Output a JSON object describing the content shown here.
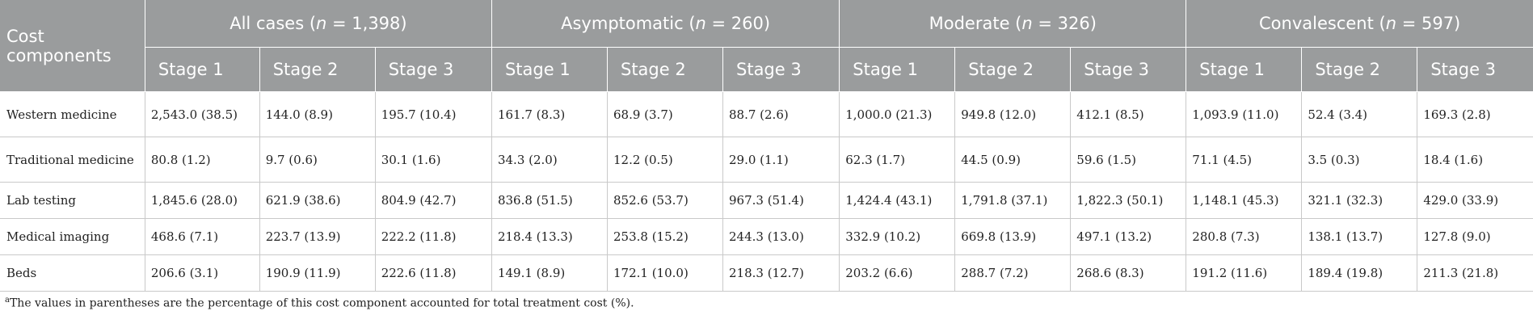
{
  "table": {
    "corner_label": "Cost components",
    "groups": [
      {
        "pre": "All cases (",
        "n_sym": "n",
        "post": " = 1,398)"
      },
      {
        "pre": "Asymptomatic (",
        "n_sym": "n",
        "post": " = 260)"
      },
      {
        "pre": "Moderate (",
        "n_sym": "n",
        "post": " = 326)"
      },
      {
        "pre": "Convalescent (",
        "n_sym": "n",
        "post": " = 597)"
      }
    ],
    "stage_labels": [
      "Stage 1",
      "Stage 2",
      "Stage 3"
    ],
    "rows": [
      {
        "label": "Western medicine",
        "cells": [
          "2,543.0 (38.5)",
          "144.0 (8.9)",
          "195.7 (10.4)",
          "161.7 (8.3)",
          "68.9 (3.7)",
          "88.7 (2.6)",
          "1,000.0 (21.3)",
          "949.8 (12.0)",
          "412.1 (8.5)",
          "1,093.9 (11.0)",
          "52.4 (3.4)",
          "169.3 (2.8)"
        ]
      },
      {
        "label": "Traditional medicine",
        "cells": [
          "80.8 (1.2)",
          "9.7 (0.6)",
          "30.1 (1.6)",
          "34.3 (2.0)",
          "12.2 (0.5)",
          "29.0 (1.1)",
          "62.3 (1.7)",
          "44.5 (0.9)",
          "59.6 (1.5)",
          "71.1 (4.5)",
          "3.5 (0.3)",
          "18.4 (1.6)"
        ]
      },
      {
        "label": "Lab testing",
        "cells": [
          "1,845.6 (28.0)",
          "621.9 (38.6)",
          "804.9 (42.7)",
          "836.8 (51.5)",
          "852.6 (53.7)",
          "967.3 (51.4)",
          "1,424.4 (43.1)",
          "1,791.8 (37.1)",
          "1,822.3 (50.1)",
          "1,148.1 (45.3)",
          "321.1 (32.3)",
          "429.0 (33.9)"
        ]
      },
      {
        "label": "Medical imaging",
        "cells": [
          "468.6 (7.1)",
          "223.7 (13.9)",
          "222.2 (11.8)",
          "218.4 (13.3)",
          "253.8 (15.2)",
          "244.3 (13.0)",
          "332.9 (10.2)",
          "669.8 (13.9)",
          "497.1 (13.2)",
          "280.8 (7.3)",
          "138.1 (13.7)",
          "127.8 (9.0)"
        ]
      },
      {
        "label": "Beds",
        "cells": [
          "206.6 (3.1)",
          "190.9 (11.9)",
          "222.6 (11.8)",
          "149.1 (8.9)",
          "172.1 (10.0)",
          "218.3 (12.7)",
          "203.2 (6.6)",
          "288.7 (7.2)",
          "268.6 (8.3)",
          "191.2 (11.6)",
          "189.4 (19.8)",
          "211.3 (21.8)"
        ]
      }
    ]
  },
  "footnote": {
    "marker": "a",
    "text": "The values in parentheses are the percentage of this cost component accounted for total treatment cost (%)."
  }
}
